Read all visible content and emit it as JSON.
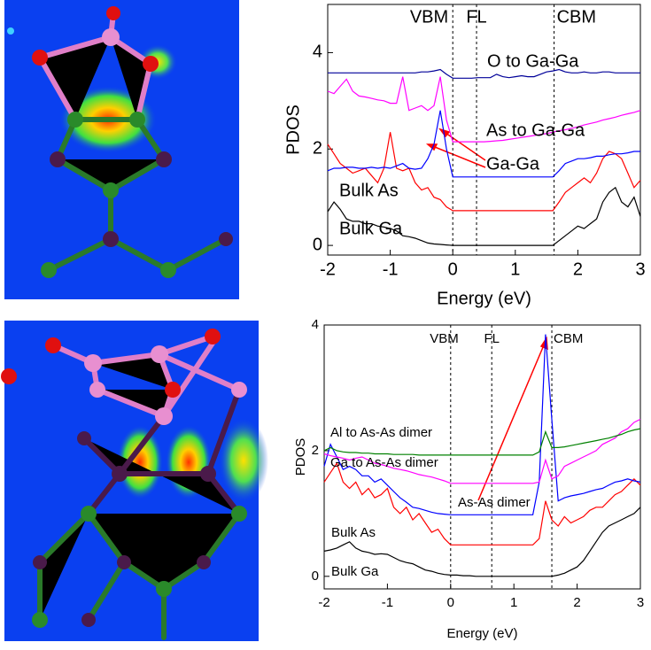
{
  "chart_data": [
    {
      "type": "line",
      "x_label": "Energy (eV)",
      "y_label": "PDOS",
      "x": [
        -2,
        -1.9,
        -1.8,
        -1.7,
        -1.6,
        -1.5,
        -1.4,
        -1.3,
        -1.2,
        -1.1,
        -1,
        -0.9,
        -0.8,
        -0.7,
        -0.6,
        -0.5,
        -0.4,
        -0.3,
        -0.2,
        -0.1,
        0,
        0.1,
        0.2,
        0.3,
        0.4,
        0.5,
        0.6,
        0.7,
        0.8,
        0.9,
        1,
        1.1,
        1.2,
        1.3,
        1.4,
        1.5,
        1.6,
        1.7,
        1.8,
        1.9,
        2,
        2.1,
        2.2,
        2.3,
        2.4,
        2.5,
        2.6,
        2.7,
        2.8,
        2.9,
        3
      ],
      "xlim": [
        -2,
        3
      ],
      "xticks": [
        -2,
        -1,
        0,
        1,
        2,
        3
      ],
      "ylim": [
        -0.2,
        5
      ],
      "yticks": [
        0,
        2,
        4
      ],
      "vlines": [
        {
          "value": 0,
          "label": "VBM"
        },
        {
          "value": 0.38,
          "label": "FL"
        },
        {
          "value": 1.62,
          "label": "CBM"
        }
      ],
      "series": [
        {
          "name": "Bulk Ga",
          "color": "#000000",
          "values": [
            0.7,
            0.9,
            0.75,
            0.55,
            0.5,
            0.5,
            0.45,
            0.45,
            0.4,
            0.38,
            0.35,
            0.3,
            0.2,
            0.18,
            0.15,
            0.1,
            0.05,
            0.03,
            0.02,
            0.01,
            0,
            0,
            0,
            0,
            0,
            0,
            0,
            0,
            0,
            0,
            0,
            0,
            0,
            0,
            0,
            0,
            0,
            0.1,
            0.2,
            0.3,
            0.4,
            0.35,
            0.45,
            0.55,
            0.9,
            1.1,
            1.2,
            0.9,
            0.8,
            1.0,
            0.6
          ]
        },
        {
          "name": "Bulk As",
          "color": "#ff0000",
          "values": [
            2.1,
            1.9,
            1.7,
            1.6,
            1.5,
            1.55,
            1.6,
            1.45,
            1.3,
            1.6,
            2.35,
            1.6,
            1.55,
            1.6,
            1.3,
            1.15,
            1.2,
            1.0,
            0.95,
            0.8,
            0.72,
            0.72,
            0.72,
            0.72,
            0.72,
            0.72,
            0.72,
            0.72,
            0.72,
            0.72,
            0.72,
            0.72,
            0.72,
            0.72,
            0.72,
            0.72,
            0.72,
            0.9,
            1.1,
            1.2,
            1.3,
            1.4,
            1.3,
            1.5,
            1.8,
            1.95,
            1.9,
            1.8,
            1.5,
            1.2,
            1.35
          ]
        },
        {
          "name": "Ga-Ga",
          "color": "#0000ff",
          "values": [
            1.55,
            1.6,
            1.6,
            1.62,
            1.62,
            1.6,
            1.6,
            1.62,
            1.6,
            1.62,
            1.6,
            1.65,
            1.7,
            1.6,
            1.58,
            1.6,
            1.8,
            2.1,
            2.8,
            2.0,
            1.42,
            1.42,
            1.42,
            1.42,
            1.42,
            1.42,
            1.42,
            1.42,
            1.42,
            1.42,
            1.42,
            1.42,
            1.42,
            1.42,
            1.42,
            1.42,
            1.42,
            1.55,
            1.7,
            1.75,
            1.8,
            1.8,
            1.82,
            1.85,
            1.85,
            1.88,
            1.9,
            1.9,
            1.92,
            1.95,
            1.95
          ]
        },
        {
          "name": "As to Ga-Ga",
          "color": "#ff00ff",
          "values": [
            3.2,
            3.15,
            3.3,
            3.45,
            3.2,
            3.1,
            3.08,
            3.05,
            3.02,
            3.0,
            2.95,
            2.95,
            3.5,
            2.8,
            2.85,
            2.9,
            2.8,
            2.9,
            3.5,
            2.6,
            2.15,
            2.15,
            2.15,
            2.15,
            2.15,
            2.15,
            2.16,
            2.17,
            2.18,
            2.2,
            2.22,
            2.24,
            2.26,
            2.28,
            2.3,
            2.32,
            2.35,
            2.38,
            2.4,
            2.43,
            2.46,
            2.5,
            2.53,
            2.56,
            2.6,
            2.63,
            2.66,
            2.7,
            2.73,
            2.76,
            2.8
          ]
        },
        {
          "name": "O to Ga-Ga",
          "color": "#000099",
          "values": [
            3.58,
            3.58,
            3.58,
            3.58,
            3.58,
            3.58,
            3.58,
            3.58,
            3.58,
            3.58,
            3.58,
            3.58,
            3.58,
            3.58,
            3.58,
            3.6,
            3.6,
            3.62,
            3.65,
            3.55,
            3.47,
            3.47,
            3.47,
            3.47,
            3.48,
            3.48,
            3.48,
            3.55,
            3.5,
            3.48,
            3.5,
            3.52,
            3.5,
            3.5,
            3.55,
            3.6,
            3.62,
            3.65,
            3.6,
            3.58,
            3.58,
            3.6,
            3.58,
            3.58,
            3.6,
            3.6,
            3.58,
            3.58,
            3.58,
            3.58,
            3.58
          ]
        }
      ]
    },
    {
      "type": "line",
      "x_label": "Energy (eV)",
      "y_label": "PDOS",
      "x": [
        -2,
        -1.9,
        -1.8,
        -1.7,
        -1.6,
        -1.5,
        -1.4,
        -1.3,
        -1.2,
        -1.1,
        -1,
        -0.9,
        -0.8,
        -0.7,
        -0.6,
        -0.5,
        -0.4,
        -0.3,
        -0.2,
        -0.1,
        0,
        0.1,
        0.2,
        0.3,
        0.4,
        0.5,
        0.6,
        0.7,
        0.8,
        0.9,
        1,
        1.1,
        1.2,
        1.3,
        1.4,
        1.5,
        1.6,
        1.7,
        1.8,
        1.9,
        2,
        2.1,
        2.2,
        2.3,
        2.4,
        2.5,
        2.6,
        2.7,
        2.8,
        2.9,
        3
      ],
      "xlim": [
        -2,
        3
      ],
      "xticks": [
        -2,
        -1,
        0,
        1,
        2,
        3
      ],
      "ylim": [
        -0.2,
        4
      ],
      "yticks": [
        0,
        2,
        4
      ],
      "vlines": [
        {
          "value": 0,
          "label": "VBM"
        },
        {
          "value": 0.65,
          "label": "FL"
        },
        {
          "value": 1.6,
          "label": "CBM"
        }
      ],
      "series": [
        {
          "name": "Bulk Ga",
          "color": "#000000",
          "values": [
            0.4,
            0.42,
            0.45,
            0.5,
            0.55,
            0.45,
            0.4,
            0.38,
            0.35,
            0.36,
            0.35,
            0.3,
            0.25,
            0.22,
            0.2,
            0.15,
            0.1,
            0.08,
            0.05,
            0.03,
            0.02,
            0.02,
            0.01,
            0.01,
            0,
            0,
            0,
            0,
            0,
            0,
            0,
            0,
            0,
            0,
            0,
            0,
            0,
            0.02,
            0.05,
            0.1,
            0.15,
            0.25,
            0.4,
            0.55,
            0.7,
            0.8,
            0.85,
            0.9,
            0.95,
            1.0,
            1.1
          ]
        },
        {
          "name": "Bulk As",
          "color": "#ff0000",
          "values": [
            1.5,
            1.65,
            1.8,
            1.5,
            1.4,
            1.5,
            1.3,
            1.4,
            1.25,
            1.3,
            1.4,
            1.1,
            1.0,
            1.1,
            0.9,
            1.0,
            0.85,
            0.7,
            0.75,
            0.6,
            0.5,
            0.5,
            0.5,
            0.5,
            0.5,
            0.5,
            0.5,
            0.5,
            0.5,
            0.5,
            0.5,
            0.5,
            0.5,
            0.5,
            0.6,
            1.2,
            0.9,
            0.8,
            0.95,
            0.85,
            0.9,
            0.95,
            1.05,
            1.1,
            1.1,
            1.2,
            1.3,
            1.35,
            1.45,
            1.55,
            1.45
          ]
        },
        {
          "name": "As-As dimer",
          "color": "#0000ff",
          "values": [
            1.75,
            2.1,
            1.9,
            1.7,
            1.75,
            1.7,
            1.6,
            1.6,
            1.5,
            1.55,
            1.45,
            1.35,
            1.25,
            1.18,
            1.1,
            1.08,
            1.05,
            1.02,
            1.0,
            0.99,
            0.98,
            0.98,
            0.98,
            0.98,
            0.98,
            0.98,
            0.98,
            0.98,
            0.98,
            0.98,
            0.98,
            0.98,
            0.98,
            0.98,
            1.5,
            3.85,
            2.5,
            1.2,
            1.25,
            1.28,
            1.3,
            1.32,
            1.35,
            1.38,
            1.4,
            1.45,
            1.5,
            1.52,
            1.55,
            1.52,
            1.5
          ]
        },
        {
          "name": "Ga to As-As dimer",
          "color": "#ff00ff",
          "values": [
            1.95,
            1.92,
            1.9,
            1.88,
            1.85,
            1.88,
            1.9,
            1.85,
            1.8,
            1.78,
            1.75,
            1.72,
            1.7,
            1.68,
            1.65,
            1.62,
            1.6,
            1.58,
            1.55,
            1.52,
            1.48,
            1.48,
            1.48,
            1.48,
            1.48,
            1.48,
            1.48,
            1.48,
            1.48,
            1.48,
            1.48,
            1.48,
            1.48,
            1.48,
            1.5,
            1.85,
            1.55,
            1.6,
            1.75,
            1.8,
            1.85,
            1.9,
            1.95,
            2.0,
            2.1,
            2.15,
            2.2,
            2.3,
            2.35,
            2.45,
            2.5
          ]
        },
        {
          "name": "Al to As-As dimer",
          "color": "#008000",
          "values": [
            2.0,
            2.05,
            2.0,
            1.98,
            1.97,
            1.97,
            1.96,
            1.96,
            1.95,
            1.95,
            1.95,
            1.94,
            1.94,
            1.94,
            1.94,
            1.93,
            1.93,
            1.93,
            1.93,
            1.93,
            1.93,
            1.93,
            1.93,
            1.93,
            1.93,
            1.93,
            1.93,
            1.93,
            1.93,
            1.93,
            1.93,
            1.93,
            1.93,
            1.93,
            1.98,
            2.3,
            2.05,
            2.05,
            2.06,
            2.08,
            2.1,
            2.12,
            2.14,
            2.16,
            2.18,
            2.2,
            2.23,
            2.26,
            2.3,
            2.33,
            2.35
          ]
        }
      ]
    }
  ]
}
